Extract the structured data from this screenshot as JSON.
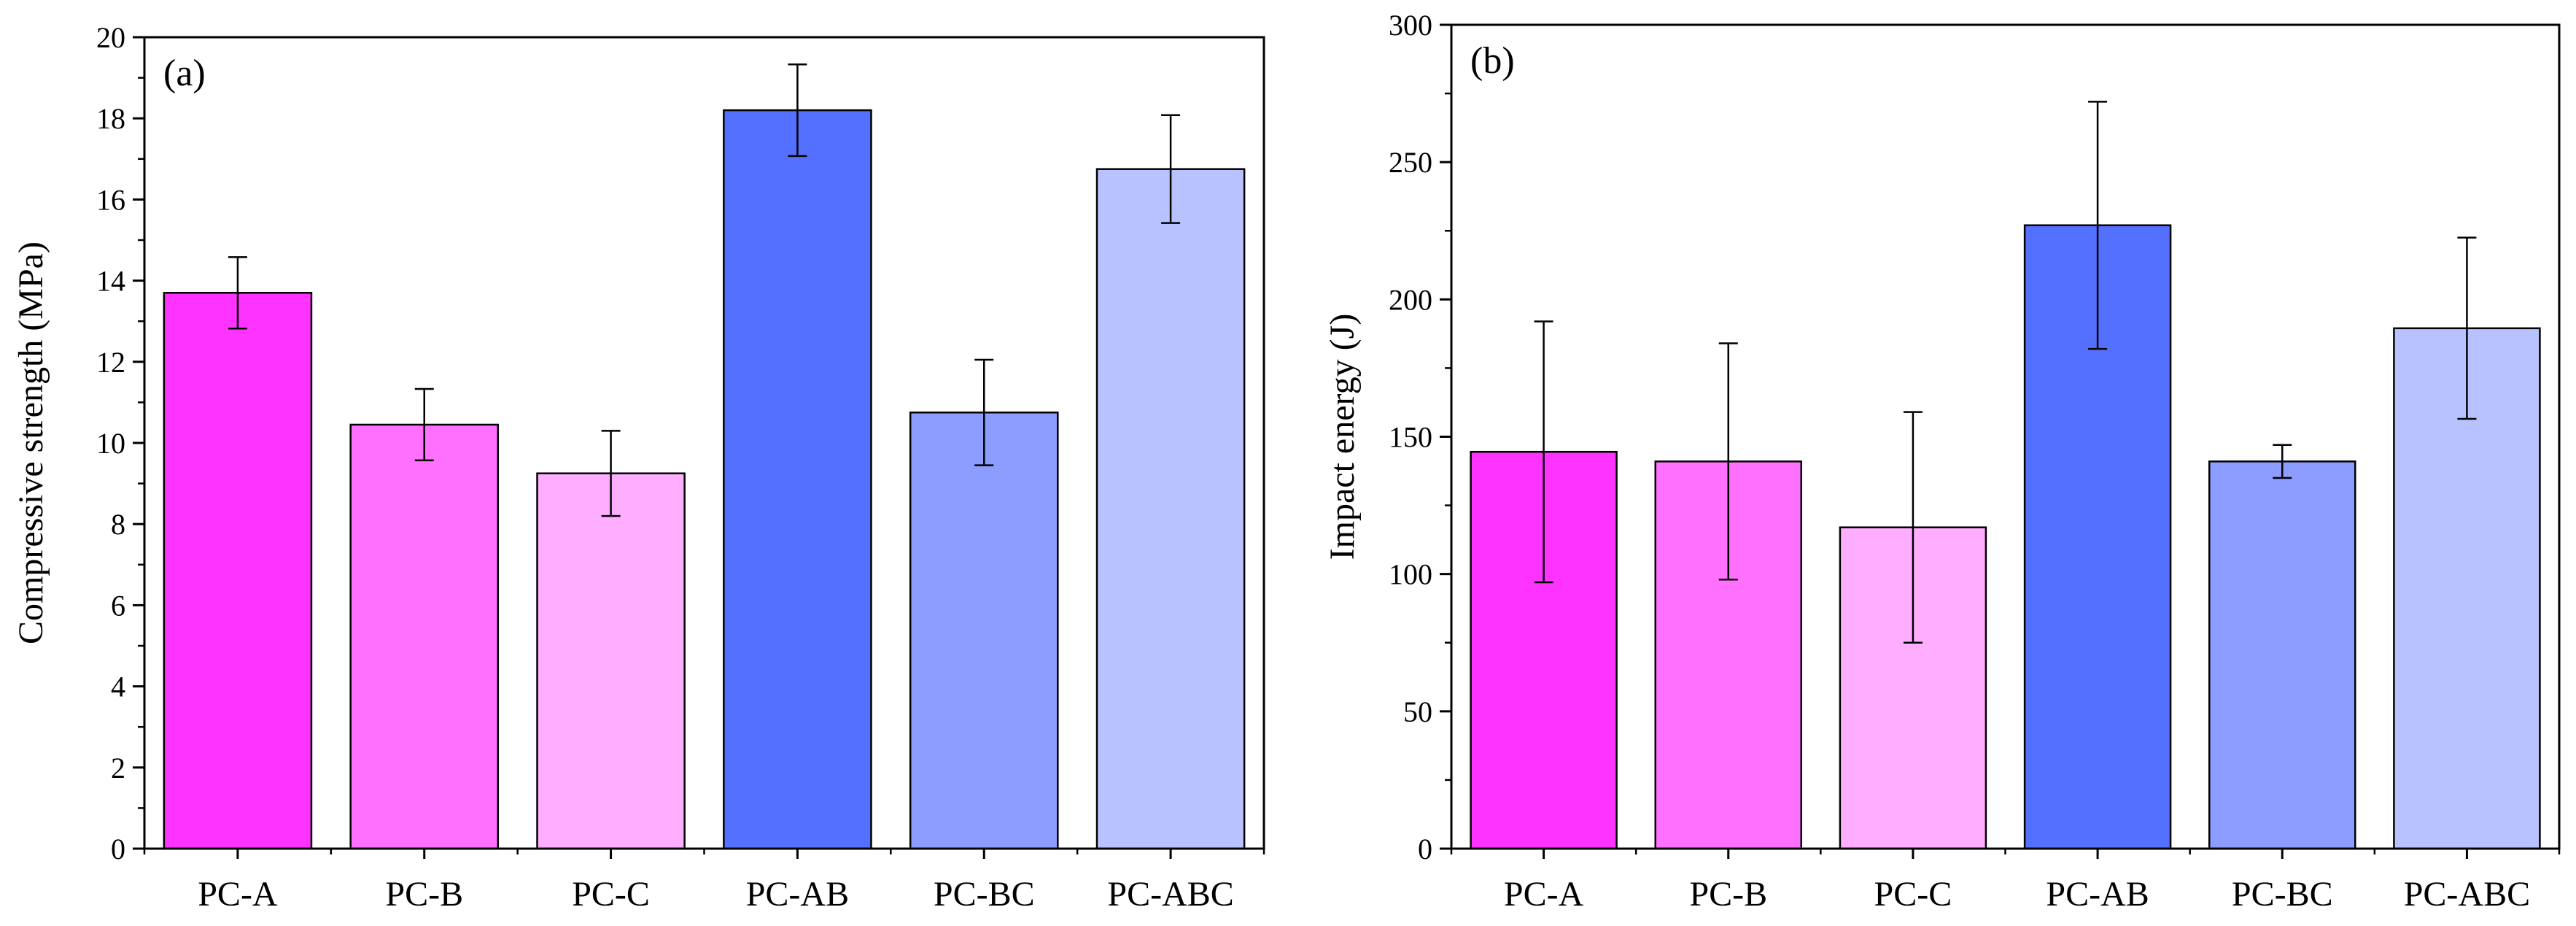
{
  "chart_data": [
    {
      "type": "bar",
      "panel_label": "(a)",
      "categories": [
        "PC-A",
        "PC-B",
        "PC-C",
        "PC-AB",
        "PC-BC",
        "PC-ABC"
      ],
      "values": [
        13.7,
        10.45,
        9.25,
        18.2,
        10.75,
        16.75
      ],
      "errors": [
        0.88,
        0.88,
        1.05,
        1.13,
        1.3,
        1.33
      ],
      "colors": [
        "#ff33ff",
        "#ff70ff",
        "#ffadff",
        "#5470ff",
        "#8c9dff",
        "#b8c2ff"
      ],
      "xlabel": "",
      "ylabel": "Compressive strength (MPa)",
      "ylim": [
        0,
        20
      ],
      "yticks": [
        "0",
        "2",
        "4",
        "6",
        "8",
        "10",
        "12",
        "14",
        "16",
        "18",
        "20"
      ],
      "grid": false,
      "legend": "none"
    },
    {
      "type": "bar",
      "panel_label": "(b)",
      "categories": [
        "PC-A",
        "PC-B",
        "PC-C",
        "PC-AB",
        "PC-BC",
        "PC-ABC"
      ],
      "values": [
        144.5,
        141,
        117,
        227,
        141,
        189.5
      ],
      "errors": [
        47.5,
        43,
        42,
        45,
        6,
        33
      ],
      "colors": [
        "#ff33ff",
        "#ff70ff",
        "#ffadff",
        "#5470ff",
        "#8c9dff",
        "#b8c2ff"
      ],
      "xlabel": "",
      "ylabel": "Impact energy (J)",
      "ylim": [
        0,
        300
      ],
      "yticks": [
        "0",
        "50",
        "100",
        "150",
        "200",
        "250",
        "300"
      ],
      "grid": false,
      "legend": "none"
    }
  ]
}
